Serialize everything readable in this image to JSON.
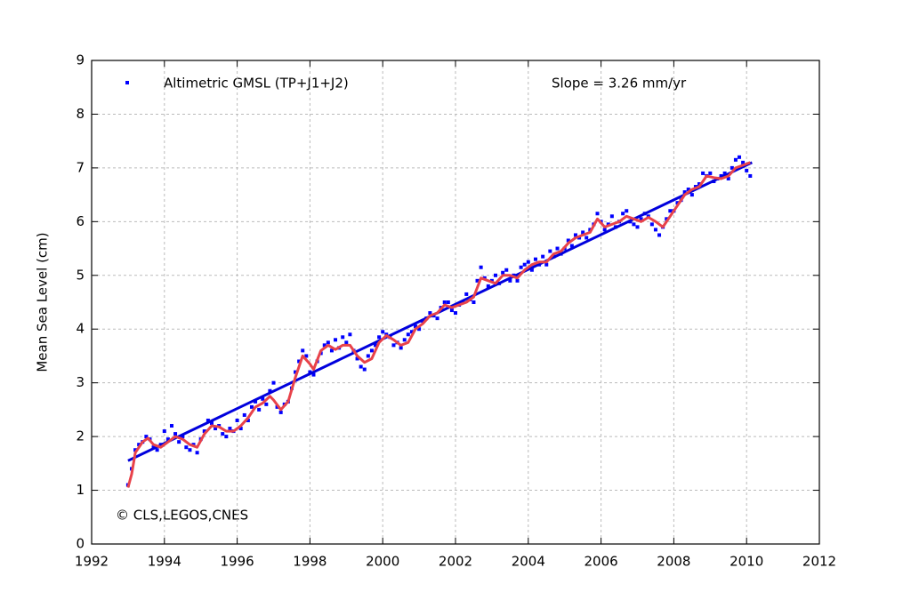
{
  "chart_data": {
    "type": "scatter",
    "y_label": "Mean Sea Level (cm)",
    "xlim": [
      1992,
      2012
    ],
    "ylim": [
      0,
      9
    ],
    "xticks": [
      1992,
      1994,
      1996,
      1998,
      2000,
      2002,
      2004,
      2006,
      2008,
      2010,
      2012
    ],
    "yticks": [
      0,
      1,
      2,
      3,
      4,
      5,
      6,
      7,
      8,
      9
    ],
    "grid": true,
    "legend": "upper left",
    "annotations": [
      "Slope = 3.26 mm/yr",
      "© CLS,LEGOS,CNES"
    ],
    "series": [
      {
        "name": "Altimetric GMSL (TP+J1+J2)",
        "type": "scatter",
        "color": "#0000ff",
        "x": [
          1993,
          1993.1,
          1993.2,
          1993.3,
          1993.4,
          1993.5,
          1993.6,
          1993.7,
          1993.8,
          1993.9,
          1994,
          1994.1,
          1994.2,
          1994.3,
          1994.4,
          1994.5,
          1994.6,
          1994.7,
          1994.8,
          1994.9,
          1995,
          1995.1,
          1995.2,
          1995.3,
          1995.4,
          1995.5,
          1995.6,
          1995.7,
          1995.8,
          1995.9,
          1996,
          1996.1,
          1996.2,
          1996.3,
          1996.4,
          1996.5,
          1996.6,
          1996.7,
          1996.8,
          1996.9,
          1997,
          1997.1,
          1997.2,
          1997.3,
          1997.4,
          1997.5,
          1997.6,
          1997.7,
          1997.8,
          1997.9,
          1998,
          1998.1,
          1998.2,
          1998.3,
          1998.4,
          1998.5,
          1998.6,
          1998.7,
          1998.8,
          1998.9,
          1999,
          1999.1,
          1999.2,
          1999.3,
          1999.4,
          1999.5,
          1999.6,
          1999.7,
          1999.8,
          1999.9,
          2000,
          2000.1,
          2000.2,
          2000.3,
          2000.4,
          2000.5,
          2000.6,
          2000.7,
          2000.8,
          2000.9,
          2001,
          2001.1,
          2001.2,
          2001.3,
          2001.4,
          2001.5,
          2001.6,
          2001.7,
          2001.8,
          2001.9,
          2002,
          2002.1,
          2002.2,
          2002.3,
          2002.4,
          2002.5,
          2002.6,
          2002.7,
          2002.8,
          2002.9,
          2003,
          2003.1,
          2003.2,
          2003.3,
          2003.4,
          2003.5,
          2003.6,
          2003.7,
          2003.8,
          2003.9,
          2004,
          2004.1,
          2004.2,
          2004.3,
          2004.4,
          2004.5,
          2004.6,
          2004.7,
          2004.8,
          2004.9,
          2005,
          2005.1,
          2005.2,
          2005.3,
          2005.4,
          2005.5,
          2005.6,
          2005.7,
          2005.8,
          2005.9,
          2006,
          2006.1,
          2006.2,
          2006.3,
          2006.4,
          2006.5,
          2006.6,
          2006.7,
          2006.8,
          2006.9,
          2007,
          2007.1,
          2007.2,
          2007.3,
          2007.4,
          2007.5,
          2007.6,
          2007.7,
          2007.8,
          2007.9,
          2008,
          2008.1,
          2008.2,
          2008.3,
          2008.4,
          2008.5,
          2008.6,
          2008.7,
          2008.8,
          2008.9,
          2009,
          2009.1,
          2009.2,
          2009.3,
          2009.4,
          2009.5,
          2009.6,
          2009.7,
          2009.8,
          2009.9,
          2010,
          2010.1
        ],
        "values": [
          1.1,
          1.4,
          1.75,
          1.85,
          1.9,
          2.0,
          1.95,
          1.8,
          1.75,
          1.85,
          2.1,
          1.95,
          2.2,
          2.05,
          1.9,
          2.0,
          1.8,
          1.75,
          1.85,
          1.7,
          1.95,
          2.1,
          2.3,
          2.25,
          2.15,
          2.2,
          2.05,
          2.0,
          2.15,
          2.1,
          2.3,
          2.15,
          2.4,
          2.3,
          2.55,
          2.65,
          2.5,
          2.7,
          2.6,
          2.85,
          3.0,
          2.55,
          2.45,
          2.6,
          2.65,
          2.9,
          3.2,
          3.4,
          3.6,
          3.5,
          3.2,
          3.15,
          3.4,
          3.55,
          3.7,
          3.75,
          3.6,
          3.8,
          3.65,
          3.85,
          3.75,
          3.9,
          3.6,
          3.45,
          3.3,
          3.25,
          3.5,
          3.6,
          3.7,
          3.85,
          3.95,
          3.9,
          3.85,
          3.7,
          3.75,
          3.65,
          3.8,
          3.9,
          3.95,
          4.05,
          4.0,
          4.15,
          4.2,
          4.3,
          4.25,
          4.2,
          4.4,
          4.5,
          4.5,
          4.35,
          4.3,
          4.45,
          4.5,
          4.65,
          4.55,
          4.5,
          4.9,
          5.15,
          4.95,
          4.8,
          4.9,
          5.0,
          4.85,
          5.05,
          5.1,
          4.9,
          5.0,
          4.9,
          5.15,
          5.2,
          5.25,
          5.1,
          5.3,
          5.2,
          5.35,
          5.2,
          5.45,
          5.35,
          5.5,
          5.4,
          5.5,
          5.65,
          5.55,
          5.75,
          5.7,
          5.8,
          5.7,
          5.85,
          5.95,
          6.15,
          6.0,
          5.85,
          5.95,
          6.1,
          5.9,
          6.0,
          6.15,
          6.2,
          6.0,
          5.95,
          5.9,
          6.05,
          6.15,
          6.1,
          5.95,
          5.85,
          5.75,
          5.9,
          6.05,
          6.2,
          6.2,
          6.35,
          6.4,
          6.55,
          6.6,
          6.5,
          6.65,
          6.7,
          6.9,
          6.85,
          6.9,
          6.75,
          6.8,
          6.85,
          6.9,
          6.8,
          7.0,
          7.15,
          7.2,
          7.1,
          6.95,
          6.85
        ]
      },
      {
        "type": "line",
        "color": "#0000dd",
        "x": [
          1993,
          2010.15
        ],
        "values": [
          1.55,
          7.1
        ]
      },
      {
        "type": "line",
        "color": "#e8424a",
        "x": [
          1993,
          1993.1,
          1993.2,
          1993.4,
          1993.55,
          1993.7,
          1993.9,
          1994.1,
          1994.3,
          1994.5,
          1994.7,
          1994.9,
          1995.1,
          1995.3,
          1995.5,
          1995.7,
          1995.9,
          1996.1,
          1996.3,
          1996.5,
          1996.7,
          1996.9,
          1997,
          1997.2,
          1997.4,
          1997.6,
          1997.8,
          1998,
          1998.1,
          1998.3,
          1998.5,
          1998.7,
          1998.9,
          1999.1,
          1999.3,
          1999.5,
          1999.7,
          1999.9,
          2000.1,
          2000.3,
          2000.5,
          2000.7,
          2000.9,
          2001.1,
          2001.3,
          2001.5,
          2001.7,
          2001.9,
          2002.1,
          2002.3,
          2002.5,
          2002.7,
          2002.9,
          2003.1,
          2003.3,
          2003.5,
          2003.7,
          2003.9,
          2004.1,
          2004.3,
          2004.5,
          2004.7,
          2004.9,
          2005.1,
          2005.3,
          2005.5,
          2005.7,
          2005.9,
          2006.1,
          2006.3,
          2006.5,
          2006.7,
          2006.9,
          2007.1,
          2007.3,
          2007.5,
          2007.7,
          2007.9,
          2008.1,
          2008.3,
          2008.5,
          2008.7,
          2008.9,
          2009.1,
          2009.3,
          2009.5,
          2009.7,
          2009.9,
          2010.1
        ],
        "values": [
          1.05,
          1.3,
          1.7,
          1.9,
          1.97,
          1.85,
          1.8,
          1.9,
          2.0,
          1.95,
          1.85,
          1.8,
          2.05,
          2.2,
          2.18,
          2.1,
          2.1,
          2.2,
          2.35,
          2.55,
          2.62,
          2.75,
          2.68,
          2.5,
          2.65,
          3.1,
          3.5,
          3.35,
          3.25,
          3.6,
          3.7,
          3.62,
          3.7,
          3.7,
          3.5,
          3.38,
          3.45,
          3.75,
          3.88,
          3.8,
          3.7,
          3.75,
          4.0,
          4.1,
          4.25,
          4.3,
          4.45,
          4.4,
          4.45,
          4.5,
          4.6,
          4.95,
          4.9,
          4.85,
          5.0,
          5.0,
          4.95,
          5.1,
          5.2,
          5.25,
          5.25,
          5.4,
          5.45,
          5.6,
          5.7,
          5.75,
          5.8,
          6.05,
          5.9,
          5.95,
          6.0,
          6.1,
          6.05,
          6.0,
          6.08,
          6.0,
          5.9,
          6.1,
          6.3,
          6.5,
          6.6,
          6.65,
          6.85,
          6.82,
          6.8,
          6.85,
          7.0,
          7.05,
          7.1
        ]
      }
    ]
  }
}
